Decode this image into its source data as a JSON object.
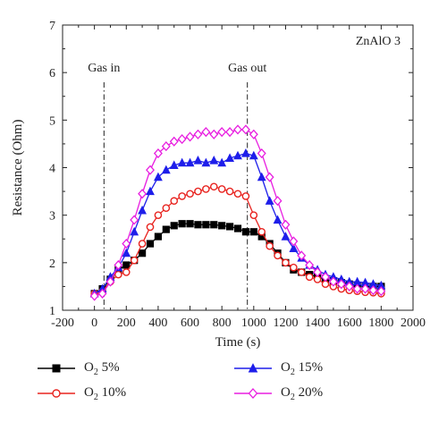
{
  "chart_data": {
    "type": "line",
    "title": "ZnAlO 3",
    "xlabel": "Time (s)",
    "ylabel": "Resistance (Ohm)",
    "xlim": [
      -200,
      2000
    ],
    "ylim": [
      1,
      7
    ],
    "xticks": [
      -200,
      0,
      200,
      400,
      600,
      800,
      1000,
      1200,
      1400,
      1600,
      1800,
      2000
    ],
    "yticks": [
      1,
      2,
      3,
      4,
      5,
      6,
      7
    ],
    "legend_position": "bottom",
    "annotations": [
      {
        "text": "Gas in",
        "x": 60
      },
      {
        "text": "Gas out",
        "x": 960
      }
    ],
    "series": [
      {
        "name": "O2 5%",
        "label_main": "O",
        "label_sub": "2",
        "label_tail": " 5%",
        "color": "#000000",
        "marker": "square-filled",
        "x": [
          0,
          50,
          100,
          150,
          200,
          250,
          300,
          350,
          400,
          450,
          500,
          550,
          600,
          650,
          700,
          750,
          800,
          850,
          900,
          950,
          1000,
          1050,
          1100,
          1150,
          1200,
          1250,
          1300,
          1350,
          1400,
          1450,
          1500,
          1550,
          1600,
          1650,
          1700,
          1750,
          1800
        ],
        "values": [
          1.35,
          1.45,
          1.65,
          1.85,
          1.95,
          2.05,
          2.2,
          2.4,
          2.55,
          2.7,
          2.78,
          2.82,
          2.82,
          2.8,
          2.8,
          2.8,
          2.78,
          2.76,
          2.72,
          2.65,
          2.65,
          2.55,
          2.4,
          2.2,
          2.0,
          1.85,
          1.8,
          1.75,
          1.7,
          1.65,
          1.62,
          1.58,
          1.55,
          1.52,
          1.5,
          1.5,
          1.5
        ]
      },
      {
        "name": "O2 10%",
        "label_main": "O",
        "label_sub": "2",
        "label_tail": " 10%",
        "color": "#e8231f",
        "marker": "circle-open",
        "x": [
          0,
          50,
          100,
          150,
          200,
          250,
          300,
          350,
          400,
          450,
          500,
          550,
          600,
          650,
          700,
          750,
          800,
          850,
          900,
          950,
          1000,
          1050,
          1100,
          1150,
          1200,
          1250,
          1300,
          1350,
          1400,
          1450,
          1500,
          1550,
          1600,
          1650,
          1700,
          1750,
          1800
        ],
        "values": [
          1.35,
          1.4,
          1.6,
          1.75,
          1.8,
          2.05,
          2.4,
          2.75,
          3.0,
          3.15,
          3.3,
          3.4,
          3.45,
          3.5,
          3.55,
          3.6,
          3.55,
          3.5,
          3.45,
          3.4,
          3.0,
          2.65,
          2.35,
          2.15,
          2.0,
          1.9,
          1.8,
          1.7,
          1.65,
          1.55,
          1.5,
          1.45,
          1.42,
          1.4,
          1.38,
          1.37,
          1.35
        ]
      },
      {
        "name": "O2 15%",
        "label_main": "O",
        "label_sub": "2",
        "label_tail": " 15%",
        "color": "#1e1eea",
        "marker": "triangle-filled",
        "x": [
          0,
          50,
          100,
          150,
          200,
          250,
          300,
          350,
          400,
          450,
          500,
          550,
          600,
          650,
          700,
          750,
          800,
          850,
          900,
          950,
          1000,
          1050,
          1100,
          1150,
          1200,
          1250,
          1300,
          1350,
          1400,
          1450,
          1500,
          1550,
          1600,
          1650,
          1700,
          1750,
          1800
        ],
        "values": [
          1.35,
          1.45,
          1.7,
          1.9,
          2.2,
          2.65,
          3.1,
          3.5,
          3.8,
          3.95,
          4.05,
          4.1,
          4.1,
          4.15,
          4.1,
          4.15,
          4.1,
          4.2,
          4.25,
          4.3,
          4.25,
          3.8,
          3.3,
          2.9,
          2.55,
          2.3,
          2.1,
          1.95,
          1.85,
          1.75,
          1.7,
          1.65,
          1.6,
          1.6,
          1.58,
          1.55,
          1.52
        ]
      },
      {
        "name": "O2 20%",
        "label_main": "O",
        "label_sub": "2",
        "label_tail": " 20%",
        "color": "#e81ee0",
        "marker": "diamond-open",
        "x": [
          0,
          50,
          100,
          150,
          200,
          250,
          300,
          350,
          400,
          450,
          500,
          550,
          600,
          650,
          700,
          750,
          800,
          850,
          900,
          950,
          1000,
          1050,
          1100,
          1150,
          1200,
          1250,
          1300,
          1350,
          1400,
          1450,
          1500,
          1550,
          1600,
          1650,
          1700,
          1750,
          1800
        ],
        "values": [
          1.3,
          1.35,
          1.6,
          1.95,
          2.4,
          2.9,
          3.45,
          3.95,
          4.3,
          4.45,
          4.55,
          4.6,
          4.65,
          4.7,
          4.75,
          4.7,
          4.75,
          4.75,
          4.8,
          4.8,
          4.7,
          4.3,
          3.8,
          3.3,
          2.8,
          2.45,
          2.15,
          1.95,
          1.8,
          1.7,
          1.6,
          1.55,
          1.5,
          1.45,
          1.45,
          1.42,
          1.4
        ]
      }
    ]
  }
}
